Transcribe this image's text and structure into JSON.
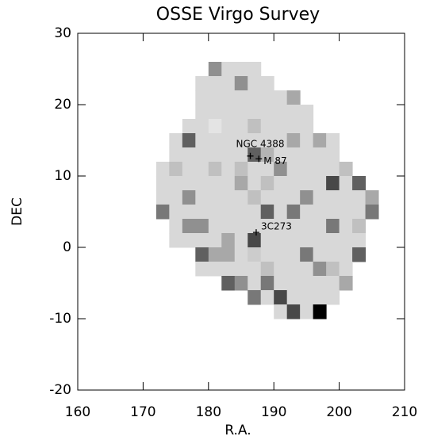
{
  "chart_data": {
    "type": "heatmap",
    "title": "OSSE Virgo Survey",
    "xlabel": "R.A.",
    "ylabel": "DEC",
    "x": [
      173,
      175,
      177,
      179,
      181,
      183,
      185,
      187,
      189,
      191,
      193,
      195,
      197,
      199,
      201,
      203,
      205
    ],
    "y": [
      25,
      23,
      21,
      19,
      17,
      15,
      13,
      11,
      9,
      7,
      5,
      3,
      1,
      -1,
      -3,
      -5,
      -7,
      -9
    ],
    "z": [
      [
        null,
        null,
        null,
        null,
        4,
        1,
        1,
        1,
        null,
        null,
        null,
        null,
        null,
        null,
        null,
        null,
        null
      ],
      [
        null,
        null,
        null,
        1,
        1,
        1,
        4,
        1,
        1,
        null,
        null,
        null,
        null,
        null,
        null,
        null,
        null
      ],
      [
        null,
        null,
        null,
        1,
        1,
        1,
        1,
        1,
        1,
        1,
        3,
        null,
        null,
        null,
        null,
        null,
        null
      ],
      [
        null,
        null,
        null,
        1,
        1,
        1,
        1,
        1,
        1,
        1,
        1,
        1,
        null,
        null,
        null,
        null,
        null
      ],
      [
        null,
        null,
        1,
        1,
        0.5,
        1,
        1,
        2,
        1,
        1,
        1,
        1,
        null,
        null,
        null,
        null,
        null
      ],
      [
        null,
        1,
        6,
        1,
        1,
        1,
        1,
        1,
        1,
        1,
        3,
        1,
        3,
        1,
        null,
        null,
        null
      ],
      [
        null,
        1,
        1,
        1,
        1,
        1,
        1,
        6,
        2.5,
        1,
        1,
        1,
        1,
        1,
        null,
        null,
        null
      ],
      [
        1,
        2,
        1,
        1,
        2,
        1,
        2,
        1,
        1,
        4,
        1,
        1,
        1,
        1,
        2,
        null,
        null
      ],
      [
        1,
        1,
        1,
        1,
        1,
        1,
        3,
        1,
        2,
        1,
        1,
        1,
        1,
        7,
        1,
        6,
        null
      ],
      [
        1,
        1,
        4,
        1,
        1,
        1,
        1,
        2,
        1,
        1,
        1,
        4,
        1,
        1,
        1,
        1,
        3
      ],
      [
        5,
        1,
        1,
        1,
        1,
        1,
        1,
        1,
        6,
        1,
        5,
        1,
        1,
        1,
        1,
        1,
        5
      ],
      [
        null,
        1,
        4,
        4,
        1,
        1,
        1,
        1,
        1,
        1,
        1,
        1,
        1,
        5,
        1,
        2,
        null
      ],
      [
        null,
        1,
        1,
        1,
        1,
        3,
        1,
        7,
        1,
        1,
        1,
        1,
        1,
        1,
        1,
        1,
        null
      ],
      [
        null,
        null,
        null,
        6,
        3,
        3,
        1,
        1.5,
        1,
        1,
        1,
        5,
        1,
        1,
        1,
        6,
        null
      ],
      [
        null,
        null,
        null,
        1,
        1,
        1,
        1,
        1,
        2,
        1,
        1,
        1,
        4,
        2,
        1,
        null,
        null
      ],
      [
        null,
        null,
        null,
        null,
        null,
        6,
        4,
        1,
        5,
        1,
        1,
        1,
        1,
        1,
        3,
        null,
        null
      ],
      [
        null,
        null,
        null,
        null,
        null,
        null,
        null,
        5,
        1,
        7,
        1,
        1,
        1,
        1,
        null,
        null,
        null
      ],
      [
        null,
        null,
        null,
        null,
        null,
        null,
        null,
        null,
        null,
        1,
        7,
        1,
        10,
        null,
        null,
        null,
        null
      ]
    ],
    "zlim": [
      0,
      10
    ],
    "xlim": [
      160,
      210
    ],
    "ylim": [
      -20,
      30
    ],
    "xticks": [
      160,
      170,
      180,
      190,
      200,
      210
    ],
    "yticks": [
      -20,
      -10,
      0,
      10,
      20,
      30
    ],
    "annotations": [
      {
        "text": "NGC 4388",
        "x": 186.4,
        "y": 12.8
      },
      {
        "text": "M 87",
        "x": 187.7,
        "y": 12.4
      },
      {
        "text": "3C273",
        "x": 187.3,
        "y": 2.1
      }
    ]
  }
}
